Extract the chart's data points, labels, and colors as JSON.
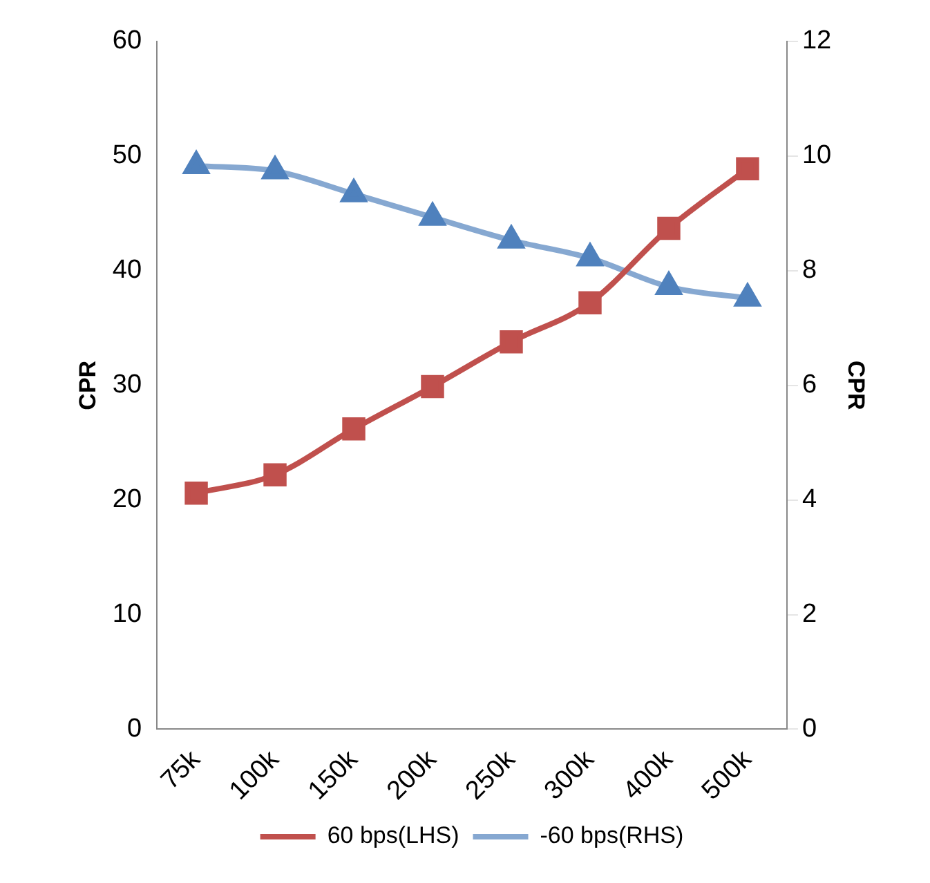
{
  "chart_data": {
    "type": "line",
    "categories": [
      "75k",
      "100k",
      "150k",
      "200k",
      "250k",
      "300k",
      "400k",
      "500k"
    ],
    "ylabel": "CPR",
    "y2label": "CPR",
    "ylim": [
      0,
      60
    ],
    "yticks": [
      0,
      10,
      20,
      30,
      40,
      50,
      60
    ],
    "y2lim": [
      0,
      12
    ],
    "y2ticks": [
      0,
      2,
      4,
      6,
      8,
      10,
      12
    ],
    "grid": false,
    "legend": "bottom",
    "series": [
      {
        "name": "60 bps(LHS)",
        "color": "#c0504d",
        "marker": "square",
        "values": [
          20.6,
          22.2,
          26.2,
          29.9,
          33.8,
          37.2,
          43.7,
          48.9
        ]
      },
      {
        "name": "-60 bps(RHS)",
        "color": "#4f81bd",
        "marker": "triangle",
        "axis": "y2",
        "values": [
          9.83,
          9.74,
          9.34,
          8.93,
          8.53,
          8.22,
          7.72,
          7.52
        ]
      }
    ]
  }
}
